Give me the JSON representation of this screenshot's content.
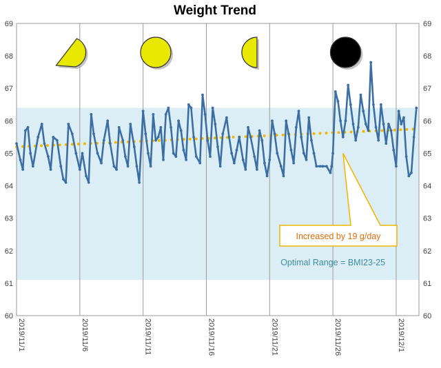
{
  "chart_data": {
    "type": "line",
    "title": "Weight Trend",
    "xlabel": "",
    "ylabel": "",
    "ylim": [
      60,
      69
    ],
    "y_ticks": [
      "60",
      "61",
      "62",
      "63",
      "64",
      "65",
      "66",
      "67",
      "68",
      "69"
    ],
    "x_range_days": [
      0,
      31.8
    ],
    "x_ticks": [
      {
        "day": 0,
        "label": "2019/11/1"
      },
      {
        "day": 5,
        "label": "2019/11/6"
      },
      {
        "day": 10,
        "label": "2019/11/11"
      },
      {
        "day": 15,
        "label": "2019/11/16"
      },
      {
        "day": 20,
        "label": "2019/11/21"
      },
      {
        "day": 25,
        "label": "2019/11/26"
      },
      {
        "day": 30,
        "label": "2019/12/1"
      }
    ],
    "grid": "vertical",
    "optimal_range": {
      "low": 61.1,
      "high": 66.4,
      "label": "Optimal Range = BMI23-25",
      "color": "#dceef5",
      "label_color": "#3c8ea3"
    },
    "trend": {
      "start": 65.2,
      "end": 65.75,
      "color": "#f2b705",
      "style": "dotted"
    },
    "annotation": {
      "text": "Increased by 19 g/day",
      "text_color": "#e46c0a",
      "border_color": "#f2b705",
      "anchor_day": 25.8,
      "anchor_value": 65.0
    },
    "moon_phases": [
      {
        "day": 4.0,
        "phase": "first-quarter-crescent",
        "color": "#e8e800"
      },
      {
        "day": 11.0,
        "phase": "full-moon",
        "color": "#e8e800"
      },
      {
        "day": 19.0,
        "phase": "last-quarter",
        "color": "#e8e800"
      },
      {
        "day": 26.0,
        "phase": "new-moon",
        "color": "#000000"
      }
    ],
    "series": [
      {
        "color": "#3a6ea5",
        "points": [
          [
            0.0,
            65.3
          ],
          [
            0.3,
            64.8
          ],
          [
            0.5,
            64.5
          ],
          [
            0.7,
            65.7
          ],
          [
            0.9,
            65.8
          ],
          [
            1.1,
            65.0
          ],
          [
            1.3,
            64.6
          ],
          [
            1.7,
            65.5
          ],
          [
            2.0,
            65.9
          ],
          [
            2.2,
            65.3
          ],
          [
            2.5,
            64.9
          ],
          [
            2.7,
            64.5
          ],
          [
            2.9,
            65.5
          ],
          [
            3.2,
            65.4
          ],
          [
            3.5,
            64.6
          ],
          [
            3.7,
            64.2
          ],
          [
            3.9,
            64.1
          ],
          [
            4.1,
            65.9
          ],
          [
            4.4,
            65.6
          ],
          [
            4.7,
            65.0
          ],
          [
            5.0,
            64.5
          ],
          [
            5.2,
            65.0
          ],
          [
            5.5,
            64.3
          ],
          [
            5.7,
            64.1
          ],
          [
            5.9,
            66.2
          ],
          [
            6.1,
            65.6
          ],
          [
            6.4,
            65.0
          ],
          [
            6.7,
            64.7
          ],
          [
            6.9,
            65.4
          ],
          [
            7.2,
            66.0
          ],
          [
            7.4,
            65.3
          ],
          [
            7.7,
            64.6
          ],
          [
            7.9,
            64.5
          ],
          [
            8.1,
            65.8
          ],
          [
            8.4,
            65.4
          ],
          [
            8.6,
            64.9
          ],
          [
            8.8,
            64.6
          ],
          [
            9.0,
            65.9
          ],
          [
            9.3,
            65.2
          ],
          [
            9.5,
            64.6
          ],
          [
            9.7,
            64.1
          ],
          [
            10.0,
            66.3
          ],
          [
            10.2,
            65.6
          ],
          [
            10.4,
            65.0
          ],
          [
            10.6,
            64.6
          ],
          [
            10.8,
            66.2
          ],
          [
            11.0,
            65.4
          ],
          [
            11.2,
            65.5
          ],
          [
            11.4,
            65.8
          ],
          [
            11.6,
            64.8
          ],
          [
            11.8,
            66.2
          ],
          [
            12.0,
            66.4
          ],
          [
            12.2,
            65.8
          ],
          [
            12.4,
            65.0
          ],
          [
            12.6,
            64.9
          ],
          [
            12.8,
            66.0
          ],
          [
            13.0,
            65.7
          ],
          [
            13.2,
            65.1
          ],
          [
            13.4,
            64.8
          ],
          [
            13.6,
            66.5
          ],
          [
            13.8,
            66.4
          ],
          [
            14.0,
            65.5
          ],
          [
            14.2,
            64.9
          ],
          [
            14.5,
            64.7
          ],
          [
            14.7,
            66.8
          ],
          [
            14.9,
            66.2
          ],
          [
            15.1,
            65.4
          ],
          [
            15.3,
            64.9
          ],
          [
            15.5,
            66.4
          ],
          [
            15.7,
            65.9
          ],
          [
            15.9,
            65.2
          ],
          [
            16.1,
            64.6
          ],
          [
            16.3,
            65.6
          ],
          [
            16.6,
            66.1
          ],
          [
            16.8,
            65.5
          ],
          [
            17.0,
            65.0
          ],
          [
            17.2,
            64.7
          ],
          [
            17.4,
            65.1
          ],
          [
            17.6,
            65.5
          ],
          [
            17.9,
            64.8
          ],
          [
            18.1,
            64.5
          ],
          [
            18.3,
            65.8
          ],
          [
            18.5,
            65.5
          ],
          [
            18.8,
            64.9
          ],
          [
            19.0,
            64.5
          ],
          [
            19.2,
            65.7
          ],
          [
            19.4,
            65.4
          ],
          [
            19.6,
            64.7
          ],
          [
            19.8,
            64.3
          ],
          [
            20.0,
            64.8
          ],
          [
            20.2,
            66.0
          ],
          [
            20.4,
            65.6
          ],
          [
            20.6,
            65.0
          ],
          [
            20.9,
            64.6
          ],
          [
            21.1,
            64.3
          ],
          [
            21.3,
            66.0
          ],
          [
            21.5,
            65.6
          ],
          [
            21.7,
            65.1
          ],
          [
            21.9,
            64.7
          ],
          [
            22.1,
            65.8
          ],
          [
            22.3,
            66.3
          ],
          [
            22.5,
            65.5
          ],
          [
            22.7,
            65.0
          ],
          [
            22.9,
            64.8
          ],
          [
            23.1,
            66.1
          ],
          [
            23.3,
            65.4
          ],
          [
            23.5,
            65.0
          ],
          [
            23.7,
            64.6
          ],
          [
            24.0,
            64.6
          ],
          [
            24.2,
            64.6
          ],
          [
            24.5,
            64.6
          ],
          [
            24.8,
            64.4
          ],
          [
            24.9,
            64.6
          ],
          [
            25.0,
            65.0
          ],
          [
            25.2,
            66.9
          ],
          [
            25.4,
            66.6
          ],
          [
            25.6,
            66.0
          ],
          [
            25.8,
            65.5
          ],
          [
            26.0,
            66.0
          ],
          [
            26.2,
            67.1
          ],
          [
            26.4,
            66.5
          ],
          [
            26.6,
            65.9
          ],
          [
            26.8,
            65.4
          ],
          [
            27.0,
            65.8
          ],
          [
            27.2,
            66.8
          ],
          [
            27.4,
            66.3
          ],
          [
            27.6,
            65.9
          ],
          [
            27.8,
            65.7
          ],
          [
            28.0,
            67.8
          ],
          [
            28.2,
            66.5
          ],
          [
            28.4,
            65.8
          ],
          [
            28.6,
            65.4
          ],
          [
            28.8,
            66.5
          ],
          [
            29.0,
            65.9
          ],
          [
            29.2,
            65.3
          ],
          [
            29.4,
            65.9
          ],
          [
            29.6,
            65.7
          ],
          [
            29.8,
            65.1
          ],
          [
            30.0,
            64.6
          ],
          [
            30.2,
            66.3
          ],
          [
            30.4,
            65.9
          ],
          [
            30.6,
            66.1
          ],
          [
            30.8,
            64.9
          ],
          [
            31.0,
            64.3
          ],
          [
            31.2,
            64.4
          ],
          [
            31.4,
            65.5
          ],
          [
            31.6,
            66.4
          ]
        ]
      }
    ]
  }
}
